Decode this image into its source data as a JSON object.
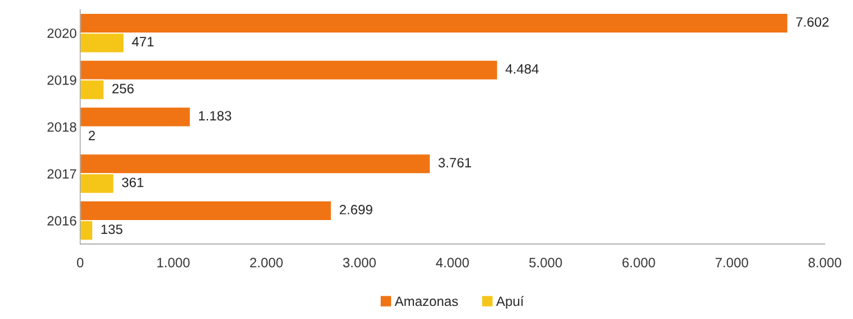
{
  "chart_data": {
    "type": "bar",
    "orientation": "horizontal",
    "categories": [
      "2020",
      "2019",
      "2018",
      "2017",
      "2016"
    ],
    "series": [
      {
        "name": "Amazonas",
        "color": "#f07414",
        "values": [
          7602,
          4484,
          1183,
          3761,
          2699
        ],
        "value_labels": [
          "7.602",
          "4.484",
          "1.183",
          "3.761",
          "2.699"
        ]
      },
      {
        "name": "Apuí",
        "color": "#f5c518",
        "values": [
          471,
          256,
          2,
          361,
          135
        ],
        "value_labels": [
          "471",
          "256",
          "2",
          "361",
          "135"
        ]
      }
    ],
    "xlim": [
      0,
      8000
    ],
    "xticks": [
      0,
      {
        "value": 1000,
        "label": "1.000"
      },
      {
        "value": 2000,
        "label": "2.000"
      },
      {
        "value": 3000,
        "label": "3.000"
      },
      {
        "value": 4000,
        "label": "4.000"
      },
      {
        "value": 5000,
        "label": "5.000"
      },
      {
        "value": 6000,
        "label": "6.000"
      },
      {
        "value": 7000,
        "label": "7.000"
      },
      {
        "value": 8000,
        "label": "8.000"
      }
    ],
    "grid": false,
    "legend": "bottom"
  }
}
